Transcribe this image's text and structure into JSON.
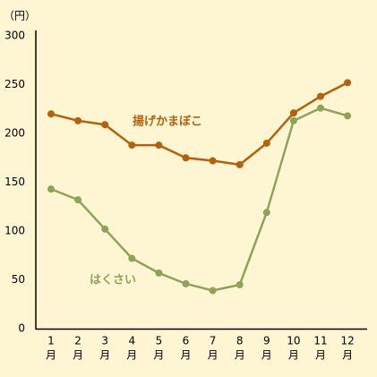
{
  "chart_data": {
    "type": "line",
    "y_unit": "（円）",
    "x_unit": "月",
    "categories": [
      "1",
      "2",
      "3",
      "4",
      "5",
      "6",
      "7",
      "8",
      "9",
      "10",
      "11",
      "12"
    ],
    "series": [
      {
        "name": "揚げかまぼこ",
        "color": "#b5600c",
        "values": [
          220,
          213,
          209,
          188,
          188,
          175,
          172,
          168,
          190,
          221,
          238,
          252
        ]
      },
      {
        "name": "はくさい",
        "color": "#8fa358",
        "values": [
          143,
          132,
          102,
          72,
          57,
          46,
          39,
          45,
          119,
          213,
          226,
          218
        ]
      }
    ],
    "ylim": [
      0,
      300
    ],
    "yticks": [
      0,
      50,
      100,
      150,
      200,
      250,
      300
    ],
    "grid": false
  }
}
